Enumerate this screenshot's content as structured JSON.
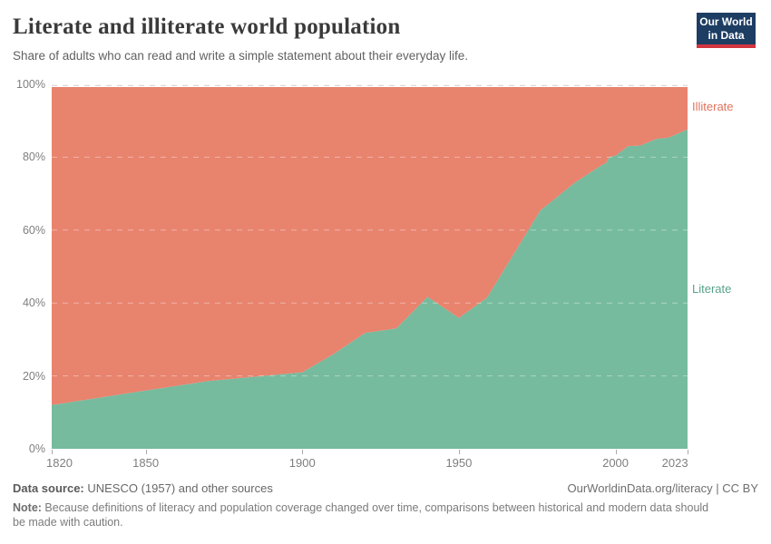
{
  "header": {
    "title": "Literate and illiterate world population",
    "subtitle": "Share of adults who can read and write a simple statement about their everyday life.",
    "logo": {
      "line1": "Our World",
      "line2": "in Data",
      "bg_color": "#1d3d63",
      "bar_color": "#d1353f"
    }
  },
  "chart_data": {
    "type": "area",
    "stacked": true,
    "title": "Literate and illiterate world population",
    "xlabel": "",
    "ylabel": "",
    "unit": "%",
    "grid": "dashed",
    "legend_position": "right-edge-labels",
    "xlim": [
      1820,
      2023
    ],
    "ylim": [
      0,
      100
    ],
    "x": [
      1820,
      1850,
      1870,
      1900,
      1910,
      1920,
      1930,
      1940,
      1950,
      1959,
      1976,
      1987,
      1995,
      1997,
      1998,
      2000,
      2004,
      2008,
      2013,
      2017,
      2023
    ],
    "series": [
      {
        "name": "Literate",
        "color": "#76bb9e",
        "label_color": "#57a389",
        "values": [
          12,
          16,
          18.6,
          21,
          26,
          31.8,
          33,
          41.7,
          35.9,
          41.5,
          65.4,
          73,
          77.5,
          78.4,
          80,
          80.4,
          83,
          83.2,
          85,
          85.4,
          87.6
        ]
      },
      {
        "name": "Illiterate",
        "color": "#e8836e",
        "label_color": "#e0735c",
        "values": [
          88,
          84,
          81.4,
          79,
          74,
          68.2,
          67,
          58.3,
          64.1,
          58.5,
          34.6,
          27,
          22.5,
          21.6,
          20,
          19.6,
          17,
          16.8,
          15,
          14.6,
          12.4
        ]
      }
    ],
    "y_ticks": [
      {
        "value": 0,
        "label": "0%"
      },
      {
        "value": 20,
        "label": "20%"
      },
      {
        "value": 40,
        "label": "40%"
      },
      {
        "value": 60,
        "label": "60%"
      },
      {
        "value": 80,
        "label": "80%"
      },
      {
        "value": 100,
        "label": "100%"
      }
    ],
    "x_ticks": [
      {
        "year": 1820,
        "label": "1820"
      },
      {
        "year": 1850,
        "label": "1850"
      },
      {
        "year": 1900,
        "label": "1900"
      },
      {
        "year": 1950,
        "label": "1950"
      },
      {
        "year": 2000,
        "label": "2000"
      },
      {
        "year": 2023,
        "label": "2023"
      }
    ]
  },
  "footer": {
    "source_label": "Data source:",
    "source_value": " UNESCO (1957) and other sources",
    "link": "OurWorldinData.org/literacy | CC BY",
    "note_label": "Note:",
    "note_value": " Because definitions of literacy and population coverage changed over time, comparisons between historical and modern data should be made with caution."
  }
}
